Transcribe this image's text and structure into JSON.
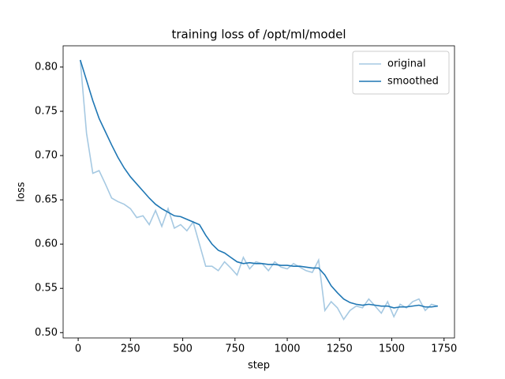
{
  "chart_data": {
    "type": "line",
    "title": "training loss of /opt/ml/model",
    "xlabel": "step",
    "ylabel": "loss",
    "x": [
      10,
      40,
      70,
      100,
      130,
      160,
      190,
      220,
      250,
      280,
      310,
      340,
      370,
      400,
      430,
      460,
      490,
      520,
      550,
      580,
      610,
      640,
      670,
      700,
      730,
      760,
      790,
      820,
      850,
      880,
      910,
      940,
      970,
      1000,
      1030,
      1060,
      1090,
      1120,
      1150,
      1180,
      1210,
      1240,
      1270,
      1300,
      1330,
      1360,
      1390,
      1420,
      1450,
      1480,
      1510,
      1540,
      1570,
      1600,
      1630,
      1660,
      1690,
      1720
    ],
    "series": [
      {
        "name": "original",
        "color": "#a6c9e2",
        "values": [
          0.808,
          0.725,
          0.68,
          0.683,
          0.668,
          0.652,
          0.648,
          0.645,
          0.64,
          0.63,
          0.632,
          0.622,
          0.638,
          0.62,
          0.64,
          0.618,
          0.622,
          0.615,
          0.625,
          0.6,
          0.575,
          0.575,
          0.57,
          0.58,
          0.573,
          0.565,
          0.585,
          0.572,
          0.58,
          0.578,
          0.57,
          0.58,
          0.574,
          0.572,
          0.578,
          0.574,
          0.57,
          0.568,
          0.582,
          0.525,
          0.535,
          0.528,
          0.515,
          0.525,
          0.53,
          0.528,
          0.538,
          0.53,
          0.522,
          0.535,
          0.518,
          0.532,
          0.528,
          0.535,
          0.538,
          0.525,
          0.532,
          0.53
        ]
      },
      {
        "name": "smoothed",
        "color": "#1f77b4",
        "values": [
          0.808,
          0.785,
          0.762,
          0.742,
          0.727,
          0.712,
          0.698,
          0.686,
          0.676,
          0.668,
          0.66,
          0.652,
          0.645,
          0.64,
          0.636,
          0.632,
          0.631,
          0.628,
          0.625,
          0.622,
          0.61,
          0.6,
          0.593,
          0.59,
          0.585,
          0.58,
          0.578,
          0.579,
          0.578,
          0.578,
          0.577,
          0.577,
          0.576,
          0.576,
          0.575,
          0.575,
          0.574,
          0.573,
          0.573,
          0.565,
          0.553,
          0.545,
          0.538,
          0.534,
          0.532,
          0.531,
          0.532,
          0.531,
          0.53,
          0.53,
          0.528,
          0.529,
          0.529,
          0.53,
          0.531,
          0.529,
          0.529,
          0.53
        ]
      }
    ],
    "xlim": [
      -72,
      1800
    ],
    "xticks": [
      0,
      250,
      500,
      750,
      1000,
      1250,
      1500,
      1750
    ],
    "ylim": [
      0.494,
      0.824
    ],
    "yticks": [
      {
        "value": 0.5,
        "label": "0.50"
      },
      0.55,
      {
        "value": 0.6,
        "label": "0.60"
      },
      0.65,
      {
        "value": 0.7,
        "label": "0.70"
      },
      0.75,
      {
        "value": 0.8,
        "label": "0.80"
      }
    ],
    "grid": false,
    "legend": "upper right"
  }
}
